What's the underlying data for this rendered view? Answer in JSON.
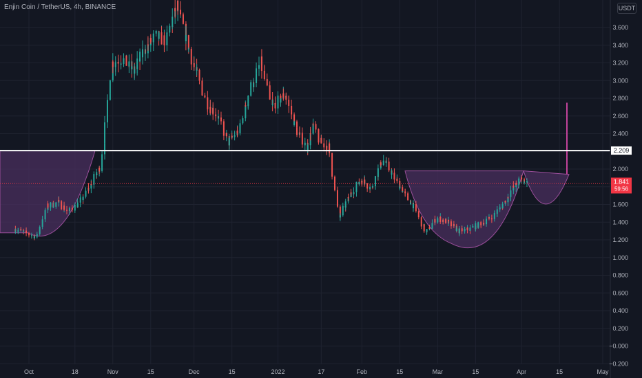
{
  "header": {
    "symbol_label": "Enjin Coin / TetherUS, 4h, BINANCE",
    "unit": "USDT"
  },
  "chart_data": {
    "type": "candlestick",
    "title": "Enjin Coin / TetherUS, 4h, BINANCE",
    "ylim": [
      -0.2,
      3.8
    ],
    "grid": true,
    "y_ticks": [
      "3.600",
      "3.400",
      "3.200",
      "3.000",
      "2.800",
      "2.600",
      "2.400",
      "2.200",
      "2.000",
      "1.800",
      "1.600",
      "1.400",
      "1.200",
      "1.000",
      "0.800",
      "0.600",
      "0.400",
      "0.200",
      "−0.000",
      "−0.200"
    ],
    "y_tick_values": [
      3.6,
      3.4,
      3.2,
      3.0,
      2.8,
      2.6,
      2.4,
      2.2,
      2.0,
      1.8,
      1.6,
      1.4,
      1.2,
      1.0,
      0.8,
      0.6,
      0.4,
      0.2,
      0.0,
      -0.2
    ],
    "x_ticks": [
      "Oct",
      "18",
      "Nov",
      "15",
      "Dec",
      "15",
      "2022",
      "17",
      "Feb",
      "15",
      "Mar",
      "15",
      "Apr",
      "15",
      "May"
    ],
    "x_tick_dates": [
      "2021-10-01",
      "2021-10-18",
      "2021-11-01",
      "2021-11-15",
      "2021-12-01",
      "2021-12-15",
      "2022-01-01",
      "2022-01-17",
      "2022-02-01",
      "2022-02-15",
      "2022-03-01",
      "2022-03-15",
      "2022-04-01",
      "2022-04-15",
      "2022-05-01"
    ],
    "price_path": [
      [
        "2021-09-26",
        1.32
      ],
      [
        "2021-09-30",
        1.28
      ],
      [
        "2021-10-04",
        1.23
      ],
      [
        "2021-10-08",
        1.58
      ],
      [
        "2021-10-12",
        1.62
      ],
      [
        "2021-10-16",
        1.52
      ],
      [
        "2021-10-20",
        1.62
      ],
      [
        "2021-10-24",
        1.82
      ],
      [
        "2021-10-28",
        2.05
      ],
      [
        "2021-11-01",
        3.2
      ],
      [
        "2021-11-05",
        3.25
      ],
      [
        "2021-11-09",
        3.1
      ],
      [
        "2021-11-13",
        3.35
      ],
      [
        "2021-11-17",
        3.5
      ],
      [
        "2021-11-21",
        3.45
      ],
      [
        "2021-11-25",
        3.85
      ],
      [
        "2021-11-29",
        3.4
      ],
      [
        "2021-12-02",
        3.1
      ],
      [
        "2021-12-06",
        2.75
      ],
      [
        "2021-12-10",
        2.6
      ],
      [
        "2021-12-14",
        2.3
      ],
      [
        "2021-12-18",
        2.45
      ],
      [
        "2021-12-22",
        2.9
      ],
      [
        "2021-12-26",
        3.2
      ],
      [
        "2021-12-30",
        2.7
      ],
      [
        "2022-01-04",
        2.85
      ],
      [
        "2022-01-08",
        2.45
      ],
      [
        "2022-01-12",
        2.25
      ],
      [
        "2022-01-14",
        2.5
      ],
      [
        "2022-01-17",
        2.3
      ],
      [
        "2022-01-20",
        2.25
      ],
      [
        "2022-01-24",
        1.45
      ],
      [
        "2022-01-28",
        1.72
      ],
      [
        "2022-02-01",
        1.88
      ],
      [
        "2022-02-05",
        1.78
      ],
      [
        "2022-02-09",
        2.12
      ],
      [
        "2022-02-13",
        1.92
      ],
      [
        "2022-02-17",
        1.72
      ],
      [
        "2022-02-21",
        1.55
      ],
      [
        "2022-02-25",
        1.28
      ],
      [
        "2022-03-01",
        1.45
      ],
      [
        "2022-03-05",
        1.4
      ],
      [
        "2022-03-09",
        1.3
      ],
      [
        "2022-03-13",
        1.32
      ],
      [
        "2022-03-17",
        1.38
      ],
      [
        "2022-03-21",
        1.45
      ],
      [
        "2022-03-25",
        1.58
      ],
      [
        "2022-03-29",
        1.78
      ],
      [
        "2022-04-01",
        1.88
      ],
      [
        "2022-04-03",
        1.84
      ]
    ],
    "price_low": 1.17,
    "price_high": 3.85,
    "annotations": {
      "resistance_level": 2.209,
      "resistance_label": "2.209",
      "current_price": 1.841,
      "current_price_label": "1.841",
      "countdown_label": "59:56",
      "projected_target": 2.75,
      "drawn_patterns": [
        "cup-and-handle left",
        "cup-and-handle right",
        "handle",
        "target projection"
      ]
    },
    "colors": {
      "background": "#131722",
      "up": "#26a69a",
      "down": "#ef5350",
      "pattern_fill": "#4a2f5e",
      "pattern_stroke": "#9c4f9c",
      "level_line": "#ffffff",
      "price_line": "#f23645"
    }
  }
}
